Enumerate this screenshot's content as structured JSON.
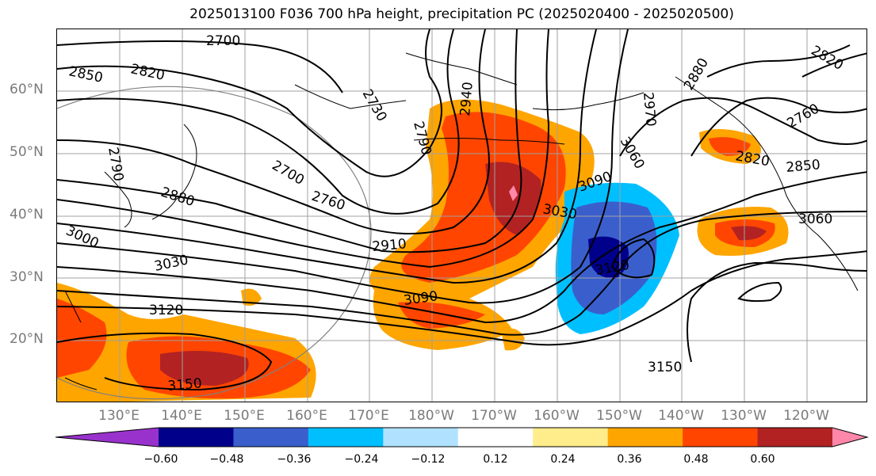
{
  "title": "2025013100 F036 700 hPa height, precipitation PC (2025020400 - 2025020500)",
  "map": {
    "lat_labels": [
      "60°N",
      "50°N",
      "40°N",
      "30°N",
      "20°N"
    ],
    "lon_labels": [
      "130°E",
      "140°E",
      "150°E",
      "160°E",
      "170°E",
      "180°W",
      "170°W",
      "160°W",
      "150°W",
      "140°W",
      "130°W",
      "120°W"
    ],
    "contour_labels": [
      "2700",
      "2850",
      "2820",
      "2730",
      "2790",
      "2940",
      "2880",
      "2790",
      "2760",
      "2970",
      "2820",
      "2850",
      "2700",
      "3060",
      "2880",
      "2760",
      "3090",
      "3030",
      "3060",
      "3000",
      "2910",
      "3030",
      "3120",
      "3090",
      "3150",
      "3150",
      "3120",
      "2820"
    ]
  },
  "colorbar": {
    "colors": [
      "#9932cc",
      "#00008b",
      "#3a5fcd",
      "#00bfff",
      "#b0e2ff",
      "#ffffff",
      "#ffec8b",
      "#ffa500",
      "#ff4500",
      "#b22222",
      "#ff88aa"
    ],
    "ticks": [
      "−0.60",
      "−0.48",
      "−0.36",
      "−0.24",
      "−0.12",
      "0.12",
      "0.24",
      "0.36",
      "0.48",
      "0.60"
    ]
  }
}
